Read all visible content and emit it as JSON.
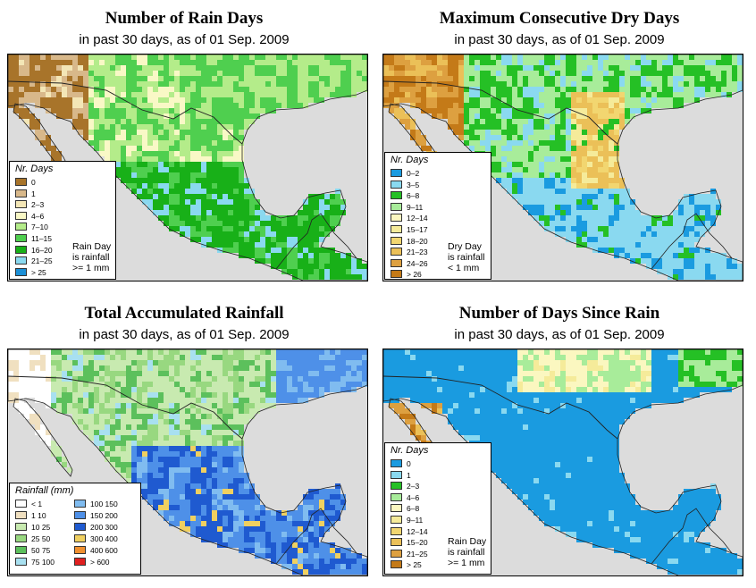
{
  "panels": [
    {
      "title": "Number of Rain Days",
      "subtitle": "in past 30 days, as of  01 Sep. 2009",
      "legend_title": "Nr. Days",
      "classes": [
        {
          "label": "0",
          "color": "#a8742a"
        },
        {
          "label": "1",
          "color": "#d8b88a"
        },
        {
          "label": "2–3",
          "color": "#f3e6b6"
        },
        {
          "label": "4–6",
          "color": "#f9f8c6"
        },
        {
          "label": "7–10",
          "color": "#b4ec8a"
        },
        {
          "label": "11–15",
          "color": "#4fcf4f"
        },
        {
          "label": "16–20",
          "color": "#18b018"
        },
        {
          "label": "21–25",
          "color": "#8ad9f0"
        },
        {
          "label": "> 25",
          "color": "#1b8fd6"
        }
      ],
      "note": [
        "Rain Day",
        "is rainfall",
        ">= 1 mm"
      ]
    },
    {
      "title": "Maximum Consecutive Dry Days",
      "subtitle": "in past 30 days, as of  01 Sep. 2009",
      "legend_title": "Nr. Days",
      "classes": [
        {
          "label": "0–2",
          "color": "#1a9be0"
        },
        {
          "label": "3–5",
          "color": "#8ad9f0"
        },
        {
          "label": "6–8",
          "color": "#25c025"
        },
        {
          "label": "9–11",
          "color": "#a8ec9a"
        },
        {
          "label": "12–14",
          "color": "#fbf7c0"
        },
        {
          "label": "15–17",
          "color": "#f5eb9a"
        },
        {
          "label": "18–20",
          "color": "#f2d670"
        },
        {
          "label": "21–23",
          "color": "#ebc058"
        },
        {
          "label": "24–26",
          "color": "#dda040"
        },
        {
          "label": "> 26",
          "color": "#c47a18"
        }
      ],
      "note": [
        "Dry Day",
        "is rainfall",
        "< 1 mm"
      ]
    },
    {
      "title": "Total Accumulated Rainfall",
      "subtitle": "in past 30 days, as of  01 Sep. 2009",
      "legend_title": "Rainfall (mm)",
      "classes": [
        {
          "label": "< 1",
          "color": "#ffffff"
        },
        {
          "label": "1   10",
          "color": "#f0e0c0"
        },
        {
          "label": "10   25",
          "color": "#c8eab0"
        },
        {
          "label": "25   50",
          "color": "#98d880"
        },
        {
          "label": "50   75",
          "color": "#5cc05c"
        },
        {
          "label": "75   100",
          "color": "#a8e0f0"
        },
        {
          "label": "100   150",
          "color": "#80bcf0"
        },
        {
          "label": "150   200",
          "color": "#4e90e8"
        },
        {
          "label": "200   300",
          "color": "#1f5ad0"
        },
        {
          "label": "300   400",
          "color": "#f0d060"
        },
        {
          "label": "400   600",
          "color": "#f09030"
        },
        {
          "label": "> 600",
          "color": "#e02020"
        }
      ],
      "note": []
    },
    {
      "title": "Number of Days Since Rain",
      "subtitle": "in past 30 days, as of  01 Sep. 2009",
      "legend_title": "Nr. Days",
      "classes": [
        {
          "label": "0",
          "color": "#1a9be0"
        },
        {
          "label": "1",
          "color": "#8ad9f0"
        },
        {
          "label": "2–3",
          "color": "#25c025"
        },
        {
          "label": "4–6",
          "color": "#a8ec9a"
        },
        {
          "label": "6–8",
          "color": "#fbf7c0"
        },
        {
          "label": "9–11",
          "color": "#f5eb9a"
        },
        {
          "label": "12–14",
          "color": "#f2d670"
        },
        {
          "label": "15–20",
          "color": "#ebc058"
        },
        {
          "label": "21–25",
          "color": "#dda040"
        },
        {
          "label": "> 25",
          "color": "#c47a18"
        }
      ],
      "note": [
        "Rain Day",
        "is rainfall",
        ">= 1 mm"
      ]
    }
  ]
}
